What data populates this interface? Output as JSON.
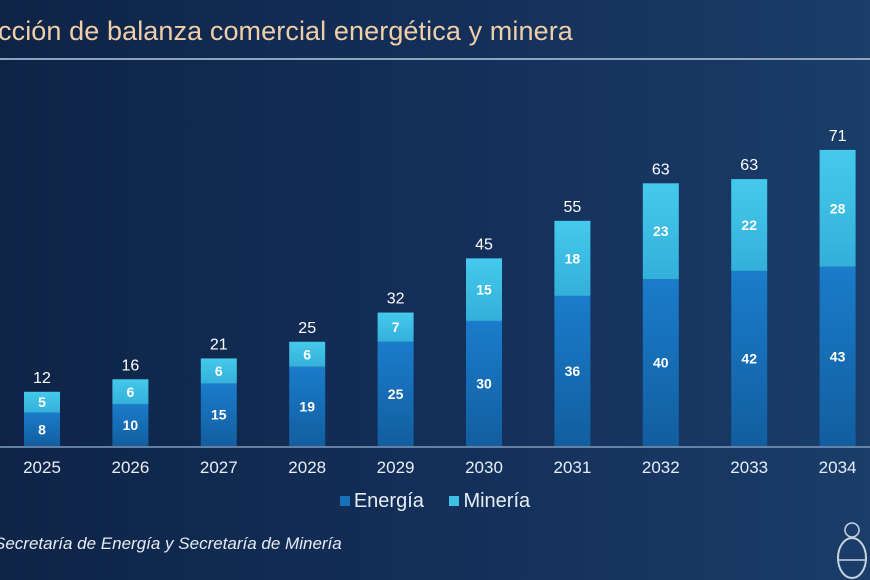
{
  "title": "cción de balanza comercial energética y minera",
  "source": "Secretaría de Energía y Secretaría de Minería",
  "colors": {
    "energia": "#1672bb",
    "mineria": "#3ec0e4",
    "title": "#f0cfa8"
  },
  "chart_data": {
    "type": "bar",
    "stacked": true,
    "categories": [
      "2025",
      "2026",
      "2027",
      "2028",
      "2029",
      "2030",
      "2031",
      "2032",
      "2033",
      "2034"
    ],
    "series": [
      {
        "name": "Energía",
        "values": [
          8,
          10,
          15,
          19,
          25,
          30,
          36,
          40,
          42,
          43
        ]
      },
      {
        "name": "Minería",
        "values": [
          5,
          6,
          6,
          6,
          7,
          15,
          18,
          23,
          22,
          28
        ]
      }
    ],
    "totals": [
      12,
      16,
      21,
      25,
      32,
      45,
      55,
      63,
      63,
      71
    ],
    "legend_position": "bottom",
    "grid": false
  },
  "legend": {
    "energia": "Energía",
    "mineria": "Minería"
  },
  "seal_icon": "argentina-coat-of-arms"
}
